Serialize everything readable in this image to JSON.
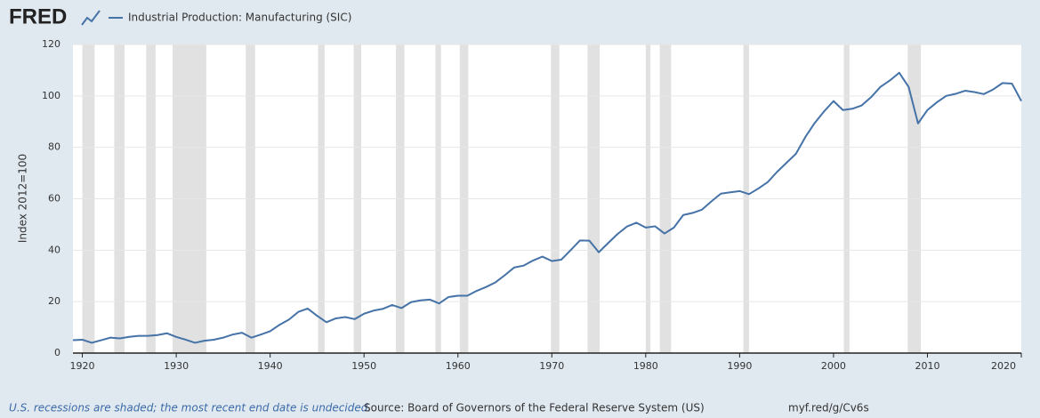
{
  "chart_data": {
    "type": "line",
    "logo": "FRED",
    "legend_label": "Industrial Production: Manufacturing (SIC)",
    "ylabel": "Index 2012=100",
    "footer_note": "U.S. recessions are shaded; the most recent end date is undecided.",
    "source": "Source: Board of Governors of the Federal Reserve System (US)",
    "url": "myf.red/g/Cv6s",
    "x": [
      1919,
      1920,
      1921,
      1922,
      1923,
      1924,
      1925,
      1926,
      1927,
      1928,
      1929,
      1930,
      1931,
      1932,
      1933,
      1934,
      1935,
      1936,
      1937,
      1938,
      1939,
      1940,
      1941,
      1942,
      1943,
      1944,
      1945,
      1946,
      1947,
      1948,
      1949,
      1950,
      1951,
      1952,
      1953,
      1954,
      1955,
      1956,
      1957,
      1958,
      1959,
      1960,
      1961,
      1962,
      1963,
      1964,
      1965,
      1966,
      1967,
      1968,
      1969,
      1970,
      1971,
      1972,
      1973,
      1974,
      1975,
      1976,
      1977,
      1978,
      1979,
      1980,
      1981,
      1982,
      1983,
      1984,
      1985,
      1986,
      1987,
      1988,
      1989,
      1990,
      1991,
      1992,
      1993,
      1994,
      1995,
      1996,
      1997,
      1998,
      1999,
      2000,
      2001,
      2002,
      2003,
      2004,
      2005,
      2006,
      2007,
      2008,
      2009,
      2010,
      2011,
      2012,
      2013,
      2014,
      2015,
      2016,
      2017,
      2018,
      2019,
      2020
    ],
    "series": [
      {
        "name": "Industrial Production: Manufacturing (SIC)",
        "color": "#4572a7",
        "values": [
          5.0,
          5.2,
          4.0,
          5.0,
          6.0,
          5.7,
          6.3,
          6.7,
          6.7,
          7.0,
          7.7,
          6.3,
          5.2,
          4.0,
          4.8,
          5.2,
          6.0,
          7.2,
          7.9,
          6.0,
          7.2,
          8.5,
          11.0,
          13.0,
          16.0,
          17.3,
          14.5,
          12.0,
          13.5,
          14.0,
          13.2,
          15.3,
          16.5,
          17.2,
          18.7,
          17.5,
          19.8,
          20.5,
          20.8,
          19.3,
          21.8,
          22.3,
          22.3,
          24.2,
          25.7,
          27.5,
          30.3,
          33.3,
          34.0,
          36.0,
          37.5,
          35.8,
          36.3,
          40.0,
          43.8,
          43.7,
          39.2,
          42.8,
          46.3,
          49.2,
          50.7,
          48.8,
          49.3,
          46.5,
          48.8,
          53.7,
          54.5,
          55.8,
          59.0,
          62.0,
          62.5,
          63.0,
          61.8,
          64.0,
          66.5,
          70.5,
          74.0,
          77.5,
          84.0,
          89.5,
          94.0,
          98.0,
          94.5,
          95.0,
          96.3,
          99.5,
          103.5,
          106.0,
          109.0,
          103.5,
          89.3,
          94.5,
          97.5,
          100.0,
          100.8,
          102.0,
          101.5,
          100.7,
          102.5,
          105.0,
          104.8,
          98.0
        ]
      }
    ],
    "recessions": [
      [
        1920.0,
        1921.3
      ],
      [
        1923.4,
        1924.5
      ],
      [
        1926.8,
        1927.8
      ],
      [
        1929.6,
        1933.2
      ],
      [
        1937.4,
        1938.4
      ],
      [
        1945.1,
        1945.8
      ],
      [
        1948.9,
        1949.7
      ],
      [
        1953.4,
        1954.3
      ],
      [
        1957.6,
        1958.2
      ],
      [
        1960.2,
        1961.1
      ],
      [
        1969.9,
        1970.8
      ],
      [
        1973.8,
        1975.1
      ],
      [
        1980.0,
        1980.5
      ],
      [
        1981.5,
        1982.7
      ],
      [
        1990.4,
        1991.0
      ],
      [
        2001.1,
        2001.7
      ],
      [
        2007.9,
        2009.3
      ]
    ],
    "recession_color": "#e1e1e1",
    "xlim": [
      1919,
      2020
    ],
    "xticks": [
      1920,
      1930,
      1940,
      1950,
      1960,
      1970,
      1980,
      1990,
      2000,
      2010,
      2020
    ],
    "ylim": [
      0,
      120
    ],
    "yticks": [
      0,
      20,
      40,
      60,
      80,
      100,
      120
    ],
    "grid": true
  }
}
